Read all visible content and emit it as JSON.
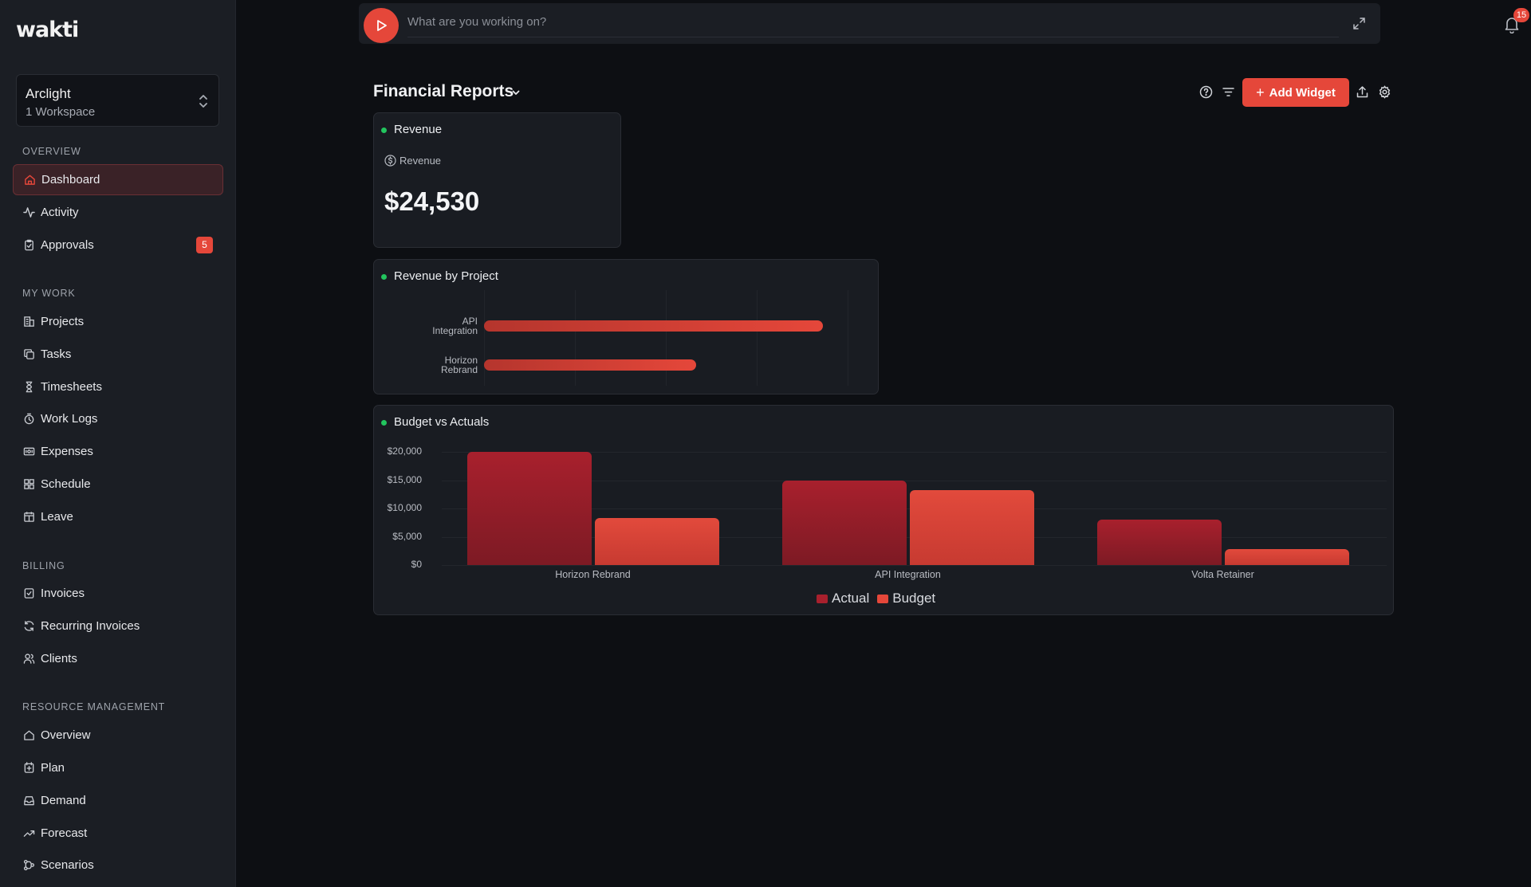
{
  "app": {
    "logo": "wakti"
  },
  "workspace": {
    "name": "Arclight",
    "subtitle": "1 Workspace"
  },
  "sidebar": {
    "sections": [
      {
        "label": "OVERVIEW"
      },
      {
        "label": "MY WORK"
      },
      {
        "label": "BILLING"
      },
      {
        "label": "RESOURCE MANAGEMENT"
      }
    ],
    "items": [
      {
        "label": "Dashboard",
        "icon": "home-icon"
      },
      {
        "label": "Activity",
        "icon": "activity-icon"
      },
      {
        "label": "Approvals",
        "icon": "clipboard-check-icon",
        "badge": "5"
      },
      {
        "label": "Projects",
        "icon": "building-icon"
      },
      {
        "label": "Tasks",
        "icon": "copy-icon"
      },
      {
        "label": "Timesheets",
        "icon": "hourglass-icon"
      },
      {
        "label": "Work Logs",
        "icon": "clock-icon"
      },
      {
        "label": "Expenses",
        "icon": "receipt-icon"
      },
      {
        "label": "Schedule",
        "icon": "grid-icon"
      },
      {
        "label": "Leave",
        "icon": "calendar-icon"
      },
      {
        "label": "Invoices",
        "icon": "invoice-icon"
      },
      {
        "label": "Recurring Invoices",
        "icon": "refresh-icon"
      },
      {
        "label": "Clients",
        "icon": "users-icon"
      },
      {
        "label": "Overview",
        "icon": "home-icon"
      },
      {
        "label": "Plan",
        "icon": "plan-icon"
      },
      {
        "label": "Demand",
        "icon": "inbox-icon"
      },
      {
        "label": "Forecast",
        "icon": "trending-up-icon"
      },
      {
        "label": "Scenarios",
        "icon": "scenarios-icon"
      }
    ]
  },
  "timer": {
    "placeholder": "What are you working on?"
  },
  "notifications": {
    "count": "15"
  },
  "header": {
    "title": "Financial Reports",
    "add_widget": "Add Widget"
  },
  "widgets": {
    "revenue": {
      "title": "Revenue",
      "label": "Revenue",
      "value": "$24,530"
    },
    "revenue_by_project": {
      "title": "Revenue by Project"
    },
    "budget_vs_actuals": {
      "title": "Budget vs Actuals"
    }
  },
  "chart_data": [
    {
      "type": "bar",
      "orientation": "horizontal",
      "title": "Revenue by Project",
      "categories": [
        "API Integration",
        "Horizon Rebrand"
      ],
      "values": [
        14700,
        9200
      ],
      "xlim": [
        0,
        16000
      ],
      "grid": true,
      "color": "#e5473a"
    },
    {
      "type": "bar",
      "title": "Budget vs Actuals",
      "categories": [
        "Horizon Rebrand",
        "API Integration",
        "Volta Retainer"
      ],
      "series": [
        {
          "name": "Actual",
          "values": [
            20000,
            15000,
            8000
          ],
          "color": "#a8202d"
        },
        {
          "name": "Budget",
          "values": [
            8300,
            13300,
            2800
          ],
          "color": "#e5473a"
        }
      ],
      "ylim": [
        0,
        20000
      ],
      "yticks": [
        "$0",
        "$5,000",
        "$10,000",
        "$15,000",
        "$20,000"
      ],
      "legend": "bottom",
      "grid": true
    }
  ]
}
